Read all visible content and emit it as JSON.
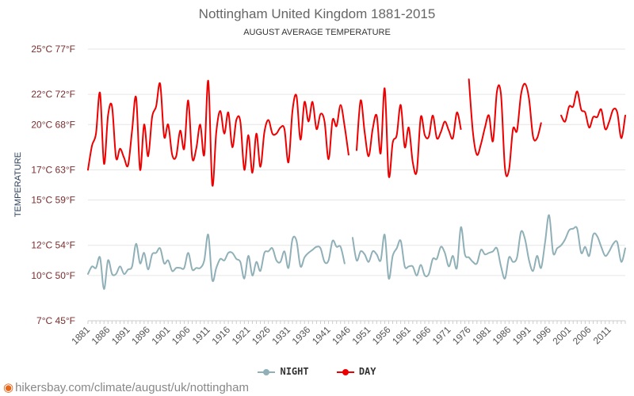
{
  "chart_data": {
    "type": "line",
    "title": "Nottingham United Kingdom 1881-2015",
    "subtitle": "AUGUST AVERAGE TEMPERATURE",
    "ylabel": "TEMPERATURE",
    "xlabel": "",
    "ylim": [
      7,
      25
    ],
    "xlim": [
      1881,
      2015
    ],
    "y_ticks": [
      {
        "value": 7,
        "label": "7°C 45°F"
      },
      {
        "value": 10,
        "label": "10°C 50°F"
      },
      {
        "value": 12,
        "label": "12°C 54°F"
      },
      {
        "value": 15,
        "label": "15°C 59°F"
      },
      {
        "value": 17,
        "label": "17°C 63°F"
      },
      {
        "value": 20,
        "label": "20°C 68°F"
      },
      {
        "value": 22,
        "label": "22°C 72°F"
      },
      {
        "value": 25,
        "label": "25°C 77°F"
      }
    ],
    "x_ticks": [
      "1881",
      "1886",
      "1891",
      "1896",
      "1901",
      "1906",
      "1911",
      "1916",
      "1921",
      "1926",
      "1931",
      "1936",
      "1941",
      "1946",
      "1951",
      "1956",
      "1961",
      "1966",
      "1971",
      "1976",
      "1981",
      "1986",
      "1991",
      "1996",
      "2001",
      "2006",
      "2011"
    ],
    "series": [
      {
        "name": "DAY",
        "color": "#ee0000",
        "segments": [
          [
            [
              1881,
              17.0
            ],
            [
              1882,
              18.6
            ],
            [
              1883,
              19.4
            ],
            [
              1884,
              22.1
            ],
            [
              1885,
              17.4
            ],
            [
              1886,
              20.6
            ],
            [
              1887,
              21.2
            ],
            [
              1888,
              17.8
            ],
            [
              1889,
              18.4
            ],
            [
              1890,
              17.8
            ],
            [
              1891,
              17.3
            ],
            [
              1892,
              19.6
            ],
            [
              1893,
              21.8
            ],
            [
              1894,
              17.0
            ],
            [
              1895,
              20.0
            ],
            [
              1896,
              17.9
            ],
            [
              1897,
              20.5
            ],
            [
              1898,
              21.2
            ],
            [
              1899,
              22.7
            ],
            [
              1900,
              19.2
            ],
            [
              1901,
              20.0
            ],
            [
              1902,
              18.0
            ],
            [
              1903,
              17.9
            ],
            [
              1904,
              19.6
            ],
            [
              1905,
              18.4
            ],
            [
              1906,
              21.6
            ],
            [
              1907,
              17.8
            ],
            [
              1908,
              18.4
            ],
            [
              1909,
              20.0
            ],
            [
              1910,
              18.0
            ],
            [
              1911,
              22.9
            ],
            [
              1912,
              16.0
            ],
            [
              1913,
              19.5
            ],
            [
              1914,
              20.9
            ],
            [
              1915,
              19.4
            ],
            [
              1916,
              20.8
            ],
            [
              1917,
              18.5
            ],
            [
              1918,
              20.3
            ],
            [
              1919,
              20.2
            ],
            [
              1920,
              17.0
            ],
            [
              1921,
              19.3
            ],
            [
              1922,
              16.8
            ],
            [
              1923,
              19.4
            ],
            [
              1924,
              17.2
            ],
            [
              1925,
              19.5
            ],
            [
              1926,
              20.3
            ],
            [
              1927,
              19.4
            ],
            [
              1928,
              19.4
            ],
            [
              1929,
              19.8
            ],
            [
              1930,
              19.7
            ],
            [
              1931,
              17.5
            ],
            [
              1932,
              20.9
            ],
            [
              1933,
              21.9
            ],
            [
              1934,
              19.0
            ],
            [
              1935,
              21.5
            ],
            [
              1936,
              20.2
            ],
            [
              1937,
              21.5
            ],
            [
              1938,
              19.7
            ],
            [
              1939,
              20.7
            ],
            [
              1940,
              20.2
            ],
            [
              1941,
              17.7
            ],
            [
              1942,
              20.3
            ],
            [
              1943,
              19.9
            ],
            [
              1944,
              21.3
            ],
            [
              1945,
              19.9
            ],
            [
              1946,
              18.0
            ]
          ],
          [
            [
              1948,
              18.3
            ],
            [
              1949,
              21.6
            ],
            [
              1950,
              19.5
            ],
            [
              1951,
              17.9
            ],
            [
              1952,
              19.7
            ],
            [
              1953,
              20.6
            ],
            [
              1954,
              18.1
            ],
            [
              1955,
              22.4
            ],
            [
              1956,
              16.6
            ],
            [
              1957,
              18.8
            ],
            [
              1958,
              19.3
            ],
            [
              1959,
              21.3
            ],
            [
              1960,
              18.5
            ],
            [
              1961,
              19.8
            ],
            [
              1962,
              17.5
            ],
            [
              1963,
              16.9
            ],
            [
              1964,
              20.5
            ],
            [
              1965,
              19.3
            ],
            [
              1966,
              19.2
            ],
            [
              1967,
              20.6
            ],
            [
              1968,
              19.1
            ],
            [
              1969,
              19.5
            ],
            [
              1970,
              20.2
            ],
            [
              1971,
              19.6
            ],
            [
              1972,
              19.1
            ],
            [
              1973,
              20.8
            ],
            [
              1974,
              19.7
            ]
          ],
          [
            [
              1976,
              23.0
            ],
            [
              1977,
              19.5
            ],
            [
              1978,
              18.0
            ],
            [
              1979,
              18.7
            ],
            [
              1980,
              19.8
            ],
            [
              1981,
              20.6
            ],
            [
              1982,
              18.9
            ],
            [
              1983,
              22.2
            ],
            [
              1984,
              22.0
            ],
            [
              1985,
              17.1
            ],
            [
              1986,
              17.0
            ],
            [
              1987,
              19.7
            ],
            [
              1988,
              19.6
            ],
            [
              1989,
              22.0
            ],
            [
              1990,
              22.7
            ],
            [
              1991,
              21.7
            ],
            [
              1992,
              19.2
            ],
            [
              1993,
              19.1
            ],
            [
              1994,
              20.1
            ]
          ],
          [
            [
              1999,
              20.6
            ],
            [
              2000,
              20.2
            ],
            [
              2001,
              21.2
            ],
            [
              2002,
              21.2
            ],
            [
              2003,
              22.2
            ],
            [
              2004,
              21.0
            ],
            [
              2005,
              20.8
            ],
            [
              2006,
              19.8
            ],
            [
              2007,
              20.5
            ],
            [
              2008,
              20.5
            ],
            [
              2009,
              21.0
            ],
            [
              2010,
              19.7
            ],
            [
              2011,
              20.2
            ],
            [
              2012,
              21.0
            ],
            [
              2013,
              20.8
            ],
            [
              2014,
              19.1
            ],
            [
              2015,
              20.6
            ]
          ]
        ]
      },
      {
        "name": "NIGHT",
        "color": "#90b0b8",
        "segments": [
          [
            [
              1881,
              10.1
            ],
            [
              1882,
              10.6
            ],
            [
              1883,
              10.5
            ],
            [
              1884,
              11.2
            ],
            [
              1885,
              9.1
            ],
            [
              1886,
              11.0
            ],
            [
              1887,
              10.1
            ],
            [
              1888,
              10.1
            ],
            [
              1889,
              10.6
            ],
            [
              1890,
              10.1
            ],
            [
              1891,
              10.4
            ],
            [
              1892,
              10.6
            ],
            [
              1893,
              12.1
            ],
            [
              1894,
              10.8
            ],
            [
              1895,
              11.5
            ],
            [
              1896,
              10.4
            ],
            [
              1897,
              11.4
            ],
            [
              1898,
              11.5
            ],
            [
              1899,
              11.8
            ],
            [
              1900,
              10.8
            ],
            [
              1901,
              11.0
            ],
            [
              1902,
              10.3
            ],
            [
              1903,
              10.5
            ],
            [
              1904,
              10.5
            ],
            [
              1905,
              10.5
            ],
            [
              1906,
              11.5
            ],
            [
              1907,
              10.4
            ],
            [
              1908,
              10.5
            ],
            [
              1909,
              10.5
            ],
            [
              1910,
              11.0
            ],
            [
              1911,
              12.7
            ],
            [
              1912,
              9.7
            ],
            [
              1913,
              10.5
            ],
            [
              1914,
              11.1
            ],
            [
              1915,
              11.0
            ],
            [
              1916,
              11.5
            ],
            [
              1917,
              11.5
            ],
            [
              1918,
              11.1
            ],
            [
              1919,
              10.9
            ],
            [
              1920,
              9.8
            ],
            [
              1921,
              11.3
            ],
            [
              1922,
              10.0
            ],
            [
              1923,
              10.9
            ],
            [
              1924,
              10.3
            ],
            [
              1925,
              11.5
            ],
            [
              1926,
              11.6
            ],
            [
              1927,
              11.8
            ],
            [
              1928,
              11.0
            ],
            [
              1929,
              10.9
            ],
            [
              1930,
              11.6
            ],
            [
              1931,
              10.5
            ],
            [
              1932,
              12.4
            ],
            [
              1933,
              12.3
            ],
            [
              1934,
              10.6
            ],
            [
              1935,
              11.2
            ],
            [
              1936,
              11.5
            ],
            [
              1937,
              11.7
            ],
            [
              1938,
              11.9
            ],
            [
              1939,
              11.8
            ],
            [
              1940,
              10.9
            ],
            [
              1941,
              11.0
            ],
            [
              1942,
              12.3
            ],
            [
              1943,
              11.9
            ],
            [
              1944,
              11.9
            ],
            [
              1945,
              10.8
            ]
          ],
          [
            [
              1947,
              12.5
            ],
            [
              1948,
              11.0
            ],
            [
              1949,
              11.6
            ],
            [
              1950,
              11.4
            ],
            [
              1951,
              10.9
            ],
            [
              1952,
              11.6
            ],
            [
              1953,
              11.4
            ],
            [
              1954,
              11.0
            ],
            [
              1955,
              12.7
            ],
            [
              1956,
              9.8
            ],
            [
              1957,
              11.3
            ],
            [
              1958,
              11.8
            ],
            [
              1959,
              12.3
            ],
            [
              1960,
              10.6
            ],
            [
              1961,
              10.6
            ],
            [
              1962,
              10.6
            ],
            [
              1963,
              10.0
            ],
            [
              1964,
              10.7
            ],
            [
              1965,
              10.0
            ],
            [
              1966,
              10.1
            ],
            [
              1967,
              11.1
            ],
            [
              1968,
              11.1
            ],
            [
              1969,
              11.9
            ],
            [
              1970,
              11.5
            ],
            [
              1971,
              10.6
            ],
            [
              1972,
              11.3
            ],
            [
              1973,
              10.5
            ],
            [
              1974,
              13.2
            ],
            [
              1975,
              11.4
            ],
            [
              1976,
              11.2
            ],
            [
              1977,
              10.9
            ],
            [
              1978,
              10.8
            ],
            [
              1979,
              11.7
            ],
            [
              1980,
              11.4
            ],
            [
              1981,
              11.5
            ],
            [
              1982,
              11.6
            ],
            [
              1983,
              11.8
            ],
            [
              1984,
              10.6
            ],
            [
              1985,
              9.8
            ],
            [
              1986,
              11.2
            ],
            [
              1987,
              10.9
            ],
            [
              1988,
              11.2
            ],
            [
              1989,
              12.9
            ],
            [
              1990,
              12.4
            ],
            [
              1991,
              11.0
            ],
            [
              1992,
              10.3
            ],
            [
              1993,
              11.3
            ],
            [
              1994,
              10.5
            ],
            [
              1995,
              12.2
            ],
            [
              1996,
              14.0
            ],
            [
              1997,
              11.5
            ],
            [
              1998,
              11.8
            ],
            [
              1999,
              12.0
            ],
            [
              2000,
              12.4
            ],
            [
              2001,
              13.0
            ],
            [
              2002,
              13.1
            ],
            [
              2003,
              13.1
            ],
            [
              2004,
              11.5
            ],
            [
              2005,
              11.9
            ],
            [
              2006,
              11.3
            ],
            [
              2007,
              12.7
            ],
            [
              2008,
              12.6
            ],
            [
              2009,
              11.9
            ],
            [
              2010,
              11.3
            ],
            [
              2011,
              11.6
            ],
            [
              2012,
              12.1
            ],
            [
              2013,
              12.2
            ],
            [
              2014,
              10.9
            ],
            [
              2015,
              11.8
            ]
          ]
        ]
      }
    ]
  },
  "legend": {
    "night_label": "NIGHT",
    "day_label": "DAY"
  },
  "footer": {
    "url": "hikersbay.com/climate/august/uk/nottingham"
  }
}
